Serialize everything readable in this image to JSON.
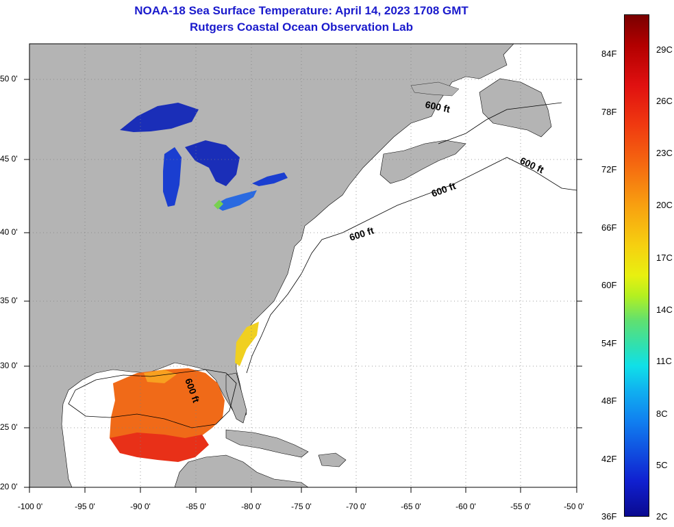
{
  "title": {
    "line1": "NOAA-18 Sea Surface Temperature:  April 14, 2023 1708 GMT",
    "line2": "Rutgers Coastal Ocean Observation Lab"
  },
  "map": {
    "lat_labels": [
      "50 0'",
      "45 0'",
      "40 0'",
      "35 0'",
      "30 0'",
      "25 0'",
      "20 0'"
    ],
    "lon_labels": [
      "-100 0'",
      "-95 0'",
      "-90 0'",
      "-85 0'",
      "-80 0'",
      "-75 0'",
      "-70 0'",
      "-65 0'",
      "-60 0'",
      "-55 0'",
      "-50 0'"
    ],
    "contour_label": "600 ft",
    "colors": {
      "land": "#b4b4b4",
      "ocean": "#ffffff",
      "grid": "#7f7f7f",
      "lakes": "#1a2eb8",
      "gulf_warm": "#f06a18",
      "gulf_hot": "#e83018"
    }
  },
  "colorbar": {
    "fahrenheit_labels": [
      "84F",
      "78F",
      "72F",
      "66F",
      "60F",
      "54F",
      "48F",
      "42F",
      "36F"
    ],
    "celsius_labels": [
      "29C",
      "26C",
      "23C",
      "20C",
      "17C",
      "14C",
      "11C",
      "8C",
      "5C",
      "2C"
    ]
  }
}
